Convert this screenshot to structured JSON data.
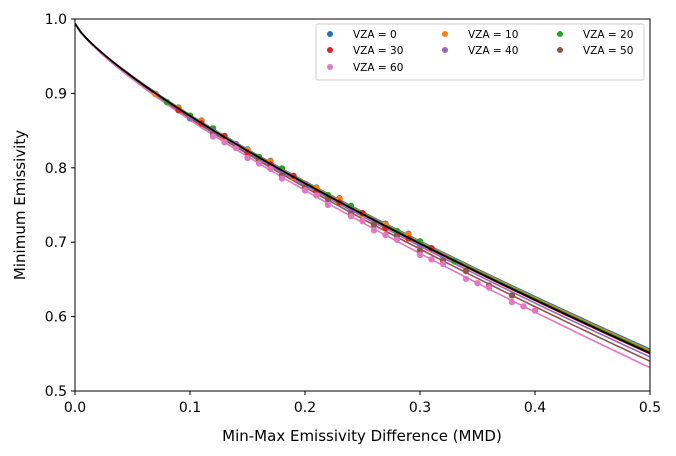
{
  "chart_data": {
    "type": "scatter",
    "xlabel": "Min-Max Emissivity Difference (MMD)",
    "ylabel": "Minimum Emissivity",
    "xlim": [
      0.0,
      0.5
    ],
    "ylim": [
      0.5,
      1.0
    ],
    "xticks": [
      "0.0",
      "0.1",
      "0.2",
      "0.3",
      "0.4",
      "0.5"
    ],
    "yticks": [
      "0.5",
      "0.6",
      "0.7",
      "0.8",
      "0.9",
      "1.0"
    ],
    "grid": false,
    "legend_position": "top-right",
    "legend_columns": 3,
    "series": [
      {
        "name": "VZA = 0",
        "color": "#1f77b4",
        "fit": {
          "a": 0.994,
          "b": 0.757,
          "c": 0.79
        },
        "x": [
          0.07,
          0.09,
          0.11,
          0.13,
          0.15,
          0.17,
          0.19,
          0.21,
          0.23,
          0.25,
          0.27,
          0.29,
          0.31
        ]
      },
      {
        "name": "VZA = 10",
        "color": "#ff7f0e",
        "fit": {
          "a": 0.994,
          "b": 0.76,
          "c": 0.79
        },
        "x": [
          0.07,
          0.09,
          0.11,
          0.13,
          0.15,
          0.17,
          0.19,
          0.21,
          0.23,
          0.25,
          0.27,
          0.29,
          0.31
        ]
      },
      {
        "name": "VZA = 20",
        "color": "#2ca02c",
        "fit": {
          "a": 0.994,
          "b": 0.763,
          "c": 0.79
        },
        "x": [
          0.08,
          0.1,
          0.12,
          0.14,
          0.16,
          0.18,
          0.2,
          0.22,
          0.24,
          0.26,
          0.28,
          0.3,
          0.33
        ]
      },
      {
        "name": "VZA = 30",
        "color": "#d62728",
        "fit": {
          "a": 0.994,
          "b": 0.768,
          "c": 0.79
        },
        "x": [
          0.09,
          0.11,
          0.13,
          0.15,
          0.17,
          0.19,
          0.21,
          0.23,
          0.25,
          0.27,
          0.29,
          0.31
        ]
      },
      {
        "name": "VZA = 40",
        "color": "#9467bd",
        "fit": {
          "a": 0.994,
          "b": 0.775,
          "c": 0.79
        },
        "x": [
          0.1,
          0.12,
          0.14,
          0.16,
          0.18,
          0.2,
          0.22,
          0.24,
          0.26,
          0.28,
          0.3,
          0.32
        ]
      },
      {
        "name": "VZA = 50",
        "color": "#8c564b",
        "fit": {
          "a": 0.994,
          "b": 0.785,
          "c": 0.79
        },
        "x": [
          0.12,
          0.14,
          0.16,
          0.18,
          0.2,
          0.22,
          0.24,
          0.26,
          0.28,
          0.3,
          0.32,
          0.34,
          0.36,
          0.38
        ]
      },
      {
        "name": "VZA = 60",
        "color": "#e377c2",
        "fit": {
          "a": 0.994,
          "b": 0.8,
          "c": 0.79
        },
        "x": [
          0.12,
          0.13,
          0.14,
          0.15,
          0.16,
          0.17,
          0.18,
          0.2,
          0.21,
          0.22,
          0.24,
          0.25,
          0.26,
          0.27,
          0.28,
          0.3,
          0.31,
          0.32,
          0.34,
          0.35,
          0.36,
          0.38,
          0.39,
          0.4
        ]
      }
    ],
    "reference_curve": {
      "color": "#000000",
      "a": 0.994,
      "b": 0.766,
      "c": 0.79
    }
  }
}
